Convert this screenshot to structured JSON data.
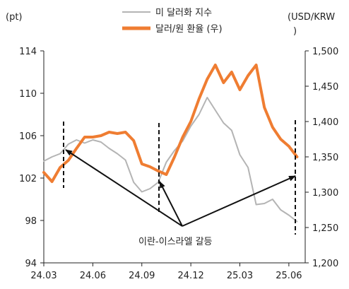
{
  "chart_data": {
    "type": "line",
    "left_axis": {
      "unit_label": "(pt)",
      "ylim": [
        94,
        114
      ],
      "ticks": [
        "114",
        "110",
        "106",
        "102",
        "98",
        "94"
      ],
      "tick_values": [
        114,
        110,
        106,
        102,
        98,
        94
      ]
    },
    "right_axis": {
      "unit_label_line1": "(USD/KRW",
      "unit_label_line2": ")",
      "ylim": [
        1200,
        1500
      ],
      "ticks": [
        "1,500",
        "1,450",
        "1,400",
        "1,350",
        "1,300",
        "1,250",
        "1,200"
      ],
      "tick_values": [
        1500,
        1450,
        1400,
        1350,
        1300,
        1250,
        1200
      ]
    },
    "x_axis": {
      "ticks": [
        "24.03",
        "24.06",
        "24.09",
        "24.12",
        "25.03",
        "25.06"
      ],
      "tick_positions": [
        0,
        3,
        6,
        9,
        12,
        15
      ],
      "xlim": [
        0,
        16
      ]
    },
    "grid": false,
    "legend_position": "top",
    "series": [
      {
        "name": "미 달러화 지수",
        "axis": "left",
        "color": "#b4b4b4",
        "x": [
          0,
          0.5,
          1,
          1.5,
          2,
          2.5,
          3,
          3.5,
          4,
          4.5,
          5,
          5.5,
          6,
          6.5,
          7,
          7.5,
          8,
          8.5,
          9,
          9.5,
          10,
          10.5,
          11,
          11.5,
          12,
          12.5,
          13,
          13.5,
          14,
          14.5,
          15,
          15.5
        ],
        "values": [
          103.6,
          104.0,
          104.3,
          105.2,
          105.6,
          105.3,
          105.6,
          105.4,
          104.8,
          104.3,
          103.7,
          101.6,
          100.7,
          101.0,
          101.6,
          103.5,
          104.6,
          105.5,
          106.9,
          108.0,
          109.6,
          108.4,
          107.2,
          106.5,
          104.2,
          103.0,
          99.5,
          99.6,
          100.0,
          99.0,
          98.5,
          97.9
        ]
      },
      {
        "name": "달러/원 환율 (우)",
        "axis": "right",
        "color": "#ef7d32",
        "x": [
          0,
          0.5,
          1,
          1.5,
          2,
          2.5,
          3,
          3.5,
          4,
          4.5,
          5,
          5.5,
          6,
          6.5,
          7,
          7.5,
          8,
          8.5,
          9,
          9.5,
          10,
          10.5,
          11,
          11.5,
          12,
          12.5,
          13,
          13.5,
          14,
          14.5,
          15,
          15.5
        ],
        "values": [
          1328,
          1315,
          1335,
          1345,
          1362,
          1378,
          1378,
          1380,
          1385,
          1383,
          1385,
          1373,
          1340,
          1336,
          1330,
          1325,
          1350,
          1378,
          1400,
          1432,
          1460,
          1480,
          1455,
          1470,
          1445,
          1465,
          1480,
          1420,
          1392,
          1375,
          1365,
          1350
        ]
      }
    ],
    "annotation": "이란-이스라엘 갈등",
    "event_markers_x": [
      1.3,
      6.6,
      15.5
    ]
  }
}
